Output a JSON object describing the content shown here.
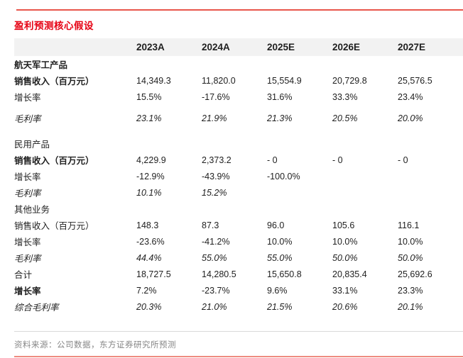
{
  "title": "盈利预测核心假设",
  "colors": {
    "title_red": "#e60012",
    "top_line": "#e8564b",
    "bottom_line": "#ee8b80",
    "header_bg": "#f2f2f2",
    "hairline": "#d9d9d9",
    "source_text": "#868686"
  },
  "table": {
    "columns": [
      "2023A",
      "2024A",
      "2025E",
      "2026E",
      "2027E"
    ],
    "rows": [
      {
        "label": "航天军工产品",
        "label_bold": true,
        "italic": false,
        "extra_gap": false,
        "values": [
          "",
          "",
          "",
          "",
          ""
        ]
      },
      {
        "label": "销售收入（百万元）",
        "label_bold": true,
        "italic": false,
        "extra_gap": false,
        "values": [
          "14,349.3",
          "11,820.0",
          "15,554.9",
          "20,729.8",
          "25,576.5"
        ]
      },
      {
        "label": "增长率",
        "label_bold": false,
        "italic": false,
        "extra_gap": false,
        "values": [
          "15.5%",
          "-17.6%",
          "31.6%",
          "33.3%",
          "23.4%"
        ]
      },
      {
        "label": "毛利率",
        "label_bold": false,
        "italic": true,
        "extra_gap": true,
        "values": [
          "23.1%",
          "21.9%",
          "21.3%",
          "20.5%",
          "20.0%"
        ]
      },
      {
        "label": "民用产品",
        "label_bold": false,
        "italic": false,
        "extra_gap": false,
        "values": [
          "",
          "",
          "",
          "",
          ""
        ]
      },
      {
        "label": "销售收入（百万元）",
        "label_bold": true,
        "italic": false,
        "extra_gap": false,
        "values": [
          "4,229.9",
          "2,373.2",
          "- 0",
          "- 0",
          "- 0"
        ]
      },
      {
        "label": "增长率",
        "label_bold": false,
        "italic": false,
        "extra_gap": false,
        "values": [
          "-12.9%",
          "-43.9%",
          "-100.0%",
          "",
          ""
        ]
      },
      {
        "label": "毛利率",
        "label_bold": false,
        "italic": true,
        "extra_gap": false,
        "values": [
          "10.1%",
          "15.2%",
          "",
          "",
          ""
        ]
      },
      {
        "label": "其他业务",
        "label_bold": false,
        "italic": false,
        "extra_gap": false,
        "values": [
          "",
          "",
          "",
          "",
          ""
        ]
      },
      {
        "label": "销售收入（百万元）",
        "label_bold": false,
        "italic": false,
        "extra_gap": false,
        "values": [
          "148.3",
          "87.3",
          "96.0",
          "105.6",
          "116.1"
        ]
      },
      {
        "label": "增长率",
        "label_bold": false,
        "italic": false,
        "extra_gap": false,
        "values": [
          "-23.6%",
          "-41.2%",
          "10.0%",
          "10.0%",
          "10.0%"
        ]
      },
      {
        "label": "毛利率",
        "label_bold": false,
        "italic": true,
        "extra_gap": false,
        "values": [
          "44.4%",
          "55.0%",
          "55.0%",
          "50.0%",
          "50.0%"
        ]
      },
      {
        "label": "合计",
        "label_bold": false,
        "italic": false,
        "extra_gap": false,
        "values": [
          "18,727.5",
          "14,280.5",
          "15,650.8",
          "20,835.4",
          "25,692.6"
        ]
      },
      {
        "label": "增长率",
        "label_bold": true,
        "italic": false,
        "extra_gap": false,
        "values": [
          "7.2%",
          "-23.7%",
          "9.6%",
          "33.1%",
          "23.3%"
        ]
      },
      {
        "label": "综合毛利率",
        "label_bold": false,
        "italic": true,
        "extra_gap": false,
        "values": [
          "20.3%",
          "21.0%",
          "21.5%",
          "20.6%",
          "20.1%"
        ]
      }
    ]
  },
  "footer": {
    "source": "资料来源：公司数据，东方证券研究所预测"
  }
}
